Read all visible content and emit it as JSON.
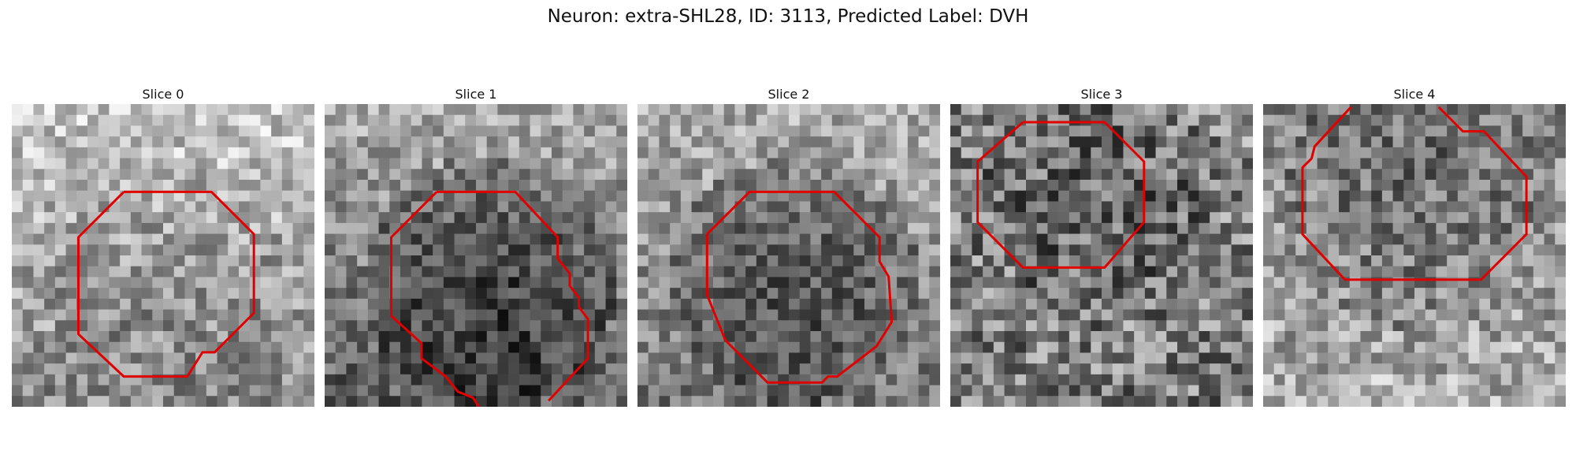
{
  "figure": {
    "title": "Neuron: extra-SHL28, ID: 3113, Predicted Label: DVH"
  },
  "panels": [
    {
      "title": "Slice 0"
    },
    {
      "title": "Slice 1"
    },
    {
      "title": "Slice 2"
    },
    {
      "title": "Slice 3"
    },
    {
      "title": "Slice 4"
    }
  ],
  "colors": {
    "contour": "#e00000",
    "background": "#ffffff",
    "text": "#111111"
  }
}
